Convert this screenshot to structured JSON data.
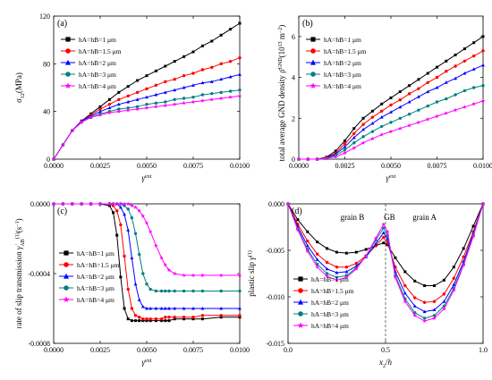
{
  "colors": [
    "#000000",
    "#ff0000",
    "#0000ff",
    "#008080",
    "#ff00ff"
  ],
  "chart_data": [
    {
      "type": "line",
      "panel": "(a)",
      "ylabel": "σ12(MPa)",
      "xlabel": "γext",
      "xlim": [
        0,
        0.01
      ],
      "ylim": [
        0,
        120
      ],
      "xticks": [
        "0.0000",
        "0.0025",
        "0.0050",
        "0.0075",
        "0.0100"
      ],
      "yticks": [
        "0",
        "40",
        "80",
        "120"
      ],
      "legend_position": "top-left",
      "x": [
        0,
        0.0005,
        0.001,
        0.0015,
        0.002,
        0.0025,
        0.003,
        0.0035,
        0.004,
        0.0045,
        0.005,
        0.0055,
        0.006,
        0.0065,
        0.007,
        0.0075,
        0.008,
        0.0085,
        0.009,
        0.0095,
        0.01
      ],
      "series": [
        {
          "name": "hA=hB=1 μm",
          "marker": "square",
          "values": [
            0,
            12,
            24,
            32,
            38,
            44,
            50,
            56,
            61,
            66,
            70,
            74,
            78,
            82,
            86,
            90,
            95,
            99,
            104,
            109,
            114
          ]
        },
        {
          "name": "hA=hB=1.5 μm",
          "marker": "circle",
          "values": [
            0,
            12,
            24,
            32,
            37,
            42,
            46,
            50,
            53,
            56,
            59,
            62,
            65,
            67,
            70,
            72,
            75,
            77,
            80,
            82,
            85
          ]
        },
        {
          "name": "hA=hB=2 μm",
          "marker": "triangle",
          "values": [
            0,
            12,
            24,
            32,
            36,
            40,
            43,
            46,
            48,
            50,
            52,
            54,
            56,
            58,
            60,
            62,
            64,
            65,
            67,
            69,
            71
          ]
        },
        {
          "name": "hA=hB=3 μm",
          "marker": "circle",
          "values": [
            0,
            12,
            24,
            31,
            35,
            38,
            40,
            42,
            43,
            44,
            46,
            47,
            48,
            50,
            51,
            52,
            54,
            55,
            56,
            57,
            58
          ]
        },
        {
          "name": "hA=hB=4 μm",
          "marker": "star",
          "values": [
            0,
            12,
            24,
            31,
            35,
            37,
            39,
            40,
            41,
            42,
            43,
            44,
            45,
            46,
            47,
            48,
            49,
            50,
            51,
            52,
            53
          ]
        }
      ]
    },
    {
      "type": "line",
      "panel": "(b)",
      "ylabel": "total average GND density ρ̄GND(10¹³ m⁻²)",
      "xlabel": "γext",
      "xlim": [
        0,
        0.01
      ],
      "ylim": [
        0,
        7
      ],
      "xticks": [
        "0.0000",
        "0.0025",
        "0.0050",
        "0.0075",
        "0.0100"
      ],
      "yticks": [
        "0",
        "2",
        "4",
        "6"
      ],
      "legend_position": "top-left",
      "x": [
        0,
        0.0005,
        0.001,
        0.0015,
        0.002,
        0.0025,
        0.003,
        0.0035,
        0.004,
        0.0045,
        0.005,
        0.0055,
        0.006,
        0.0065,
        0.007,
        0.0075,
        0.008,
        0.0085,
        0.009,
        0.0095,
        0.01
      ],
      "series": [
        {
          "name": "hA=hB=1 μm",
          "marker": "square",
          "values": [
            0,
            0,
            0,
            0.1,
            0.4,
            0.9,
            1.5,
            2.0,
            2.35,
            2.7,
            3.0,
            3.3,
            3.6,
            3.9,
            4.2,
            4.5,
            4.8,
            5.1,
            5.4,
            5.7,
            6.0
          ]
        },
        {
          "name": "hA=hB=1.5 μm",
          "marker": "circle",
          "values": [
            0,
            0,
            0,
            0.08,
            0.3,
            0.75,
            1.25,
            1.7,
            2.05,
            2.35,
            2.65,
            2.9,
            3.2,
            3.45,
            3.75,
            4.0,
            4.3,
            4.55,
            4.8,
            5.05,
            5.3
          ]
        },
        {
          "name": "hA=hB=2 μm",
          "marker": "triangle",
          "values": [
            0,
            0,
            0,
            0.06,
            0.25,
            0.6,
            1.05,
            1.45,
            1.75,
            2.05,
            2.3,
            2.55,
            2.8,
            3.05,
            3.3,
            3.5,
            3.75,
            3.95,
            4.2,
            4.4,
            4.6
          ]
        },
        {
          "name": "hA=hB=3 μm",
          "marker": "circle",
          "values": [
            0,
            0,
            0,
            0.04,
            0.18,
            0.45,
            0.8,
            1.1,
            1.35,
            1.6,
            1.8,
            2.0,
            2.2,
            2.4,
            2.6,
            2.8,
            2.95,
            3.15,
            3.35,
            3.5,
            3.6
          ]
        },
        {
          "name": "hA=hB=4 μm",
          "marker": "star",
          "values": [
            0,
            0,
            0,
            0.03,
            0.12,
            0.3,
            0.55,
            0.8,
            1.0,
            1.2,
            1.35,
            1.5,
            1.65,
            1.8,
            1.95,
            2.1,
            2.25,
            2.4,
            2.55,
            2.7,
            2.85
          ]
        }
      ]
    },
    {
      "type": "line",
      "panel": "(c)",
      "ylabel": "rate of slip transmission γ̇AB(1)(s⁻¹)",
      "xlabel": "γext",
      "xlim": [
        0,
        0.01
      ],
      "ylim": [
        -0.0008,
        0
      ],
      "xticks": [
        "0.0000",
        "0.0025",
        "0.0050",
        "0.0075",
        "0.0100"
      ],
      "yticks": [
        "0.0000",
        "-0.0004",
        "-0.0008"
      ],
      "legend_position": "center-left",
      "x": [
        0,
        0.0005,
        0.001,
        0.0015,
        0.002,
        0.0025,
        0.003,
        0.0032,
        0.0034,
        0.0036,
        0.0038,
        0.004,
        0.0042,
        0.0044,
        0.0046,
        0.0048,
        0.005,
        0.0052,
        0.0055,
        0.0058,
        0.006,
        0.0062,
        0.0065,
        0.007,
        0.0075,
        0.008,
        0.009,
        0.01
      ],
      "series": [
        {
          "name": "hA=hB=1 μm",
          "marker": "square",
          "values": [
            0,
            0,
            0,
            0,
            0,
            0,
            -1e-05,
            -5e-05,
            -0.00018,
            -0.00042,
            -0.0006,
            -0.00066,
            -0.00067,
            -0.00067,
            -0.00067,
            -0.00067,
            -0.00067,
            -0.00067,
            -0.00067,
            -0.00067,
            -0.00067,
            -0.00067,
            -0.00066,
            -0.00066,
            -0.00066,
            -0.00066,
            -0.00065,
            -0.00065
          ]
        },
        {
          "name": "hA=hB=1.5 μm",
          "marker": "circle",
          "values": [
            0,
            0,
            0,
            0,
            0,
            0,
            0,
            -1e-05,
            -4e-05,
            -0.00012,
            -0.0003,
            -0.00049,
            -0.0006,
            -0.00064,
            -0.00065,
            -0.00066,
            -0.00066,
            -0.00066,
            -0.00066,
            -0.00066,
            -0.00065,
            -0.00065,
            -0.00065,
            -0.00065,
            -0.00065,
            -0.00064,
            -0.00064,
            -0.00064
          ]
        },
        {
          "name": "hA=hB=2 μm",
          "marker": "triangle",
          "values": [
            0,
            0,
            0,
            0,
            0,
            0,
            0,
            0,
            0,
            -2e-05,
            -6e-05,
            -0.00015,
            -0.00031,
            -0.00046,
            -0.00055,
            -0.00059,
            -0.0006,
            -0.0006,
            -0.0006,
            -0.0006,
            -0.0006,
            -0.0006,
            -0.0006,
            -0.0006,
            -0.0006,
            -0.0006,
            -0.0006,
            -0.0006
          ]
        },
        {
          "name": "hA=hB=3 μm",
          "marker": "circle",
          "values": [
            0,
            0,
            0,
            0,
            0,
            0,
            0,
            0,
            0,
            0,
            -1e-05,
            -3e-05,
            -8e-05,
            -0.00017,
            -0.00029,
            -0.0004,
            -0.00046,
            -0.00049,
            -0.0005,
            -0.0005,
            -0.0005,
            -0.0005,
            -0.0005,
            -0.0005,
            -0.0005,
            -0.0005,
            -0.0005,
            -0.0005
          ]
        },
        {
          "name": "hA=hB=4 μm",
          "marker": "star",
          "values": [
            0,
            0,
            0,
            0,
            0,
            0,
            0,
            0,
            0,
            0,
            0,
            0,
            -1e-05,
            -2e-05,
            -4e-05,
            -7e-05,
            -0.00011,
            -0.00016,
            -0.00024,
            -0.00031,
            -0.00035,
            -0.00038,
            -0.0004,
            -0.00041,
            -0.00041,
            -0.00041,
            -0.00041,
            -0.00041
          ]
        }
      ]
    },
    {
      "type": "line",
      "panel": "(d)",
      "ylabel": "plastic slip γ(1)",
      "xlabel": "x2/h",
      "xlim": [
        0,
        1
      ],
      "ylim": [
        -0.015,
        0
      ],
      "xticks": [
        "0.0",
        "0.5",
        "1.0"
      ],
      "yticks": [
        "0.000",
        "-0.005",
        "-0.010",
        "-0.015"
      ],
      "legend_position": "bottom-left",
      "annotations": [
        "grain B",
        "GB",
        "grain A"
      ],
      "gb_line_x": 0.5,
      "x": [
        0,
        0.05,
        0.1,
        0.15,
        0.2,
        0.25,
        0.3,
        0.35,
        0.4,
        0.45,
        0.49,
        0.51,
        0.55,
        0.6,
        0.65,
        0.7,
        0.75,
        0.8,
        0.85,
        0.9,
        0.95,
        1.0
      ],
      "series": [
        {
          "name": "hA=hB=1 μm",
          "marker": "square",
          "values": [
            0,
            -0.0017,
            -0.003,
            -0.0041,
            -0.0048,
            -0.0052,
            -0.0053,
            -0.0052,
            -0.0049,
            -0.0045,
            -0.0042,
            -0.0044,
            -0.0058,
            -0.0073,
            -0.0083,
            -0.0088,
            -0.0088,
            -0.0082,
            -0.0068,
            -0.0048,
            -0.0024,
            0
          ]
        },
        {
          "name": "hA=hB=1.5 μm",
          "marker": "circle",
          "values": [
            0,
            -0.0022,
            -0.004,
            -0.0054,
            -0.0063,
            -0.0068,
            -0.0068,
            -0.0064,
            -0.0056,
            -0.0045,
            -0.0036,
            -0.0042,
            -0.0068,
            -0.0088,
            -0.0101,
            -0.0106,
            -0.0105,
            -0.0097,
            -0.008,
            -0.0057,
            -0.003,
            0
          ]
        },
        {
          "name": "hA=hB=2 μm",
          "marker": "triangle",
          "values": [
            0,
            -0.0025,
            -0.0045,
            -0.006,
            -0.007,
            -0.0074,
            -0.0073,
            -0.0067,
            -0.0057,
            -0.0043,
            -0.0031,
            -0.0038,
            -0.0073,
            -0.0096,
            -0.011,
            -0.0116,
            -0.0114,
            -0.0105,
            -0.0087,
            -0.0062,
            -0.0032,
            0
          ]
        },
        {
          "name": "hA=hB=3 μm",
          "marker": "circle",
          "values": [
            0,
            -0.0027,
            -0.0049,
            -0.0065,
            -0.0075,
            -0.0079,
            -0.0077,
            -0.0069,
            -0.0056,
            -0.0039,
            -0.0026,
            -0.0034,
            -0.0077,
            -0.0102,
            -0.0117,
            -0.0123,
            -0.012,
            -0.011,
            -0.0091,
            -0.0065,
            -0.0034,
            0
          ]
        },
        {
          "name": "hA=hB=4 μm",
          "marker": "star",
          "values": [
            0,
            -0.0028,
            -0.0051,
            -0.0068,
            -0.0078,
            -0.0082,
            -0.0079,
            -0.007,
            -0.0056,
            -0.0037,
            -0.0022,
            -0.003,
            -0.0079,
            -0.0105,
            -0.012,
            -0.0126,
            -0.0123,
            -0.0113,
            -0.0093,
            -0.0066,
            -0.0035,
            0
          ]
        }
      ]
    }
  ]
}
